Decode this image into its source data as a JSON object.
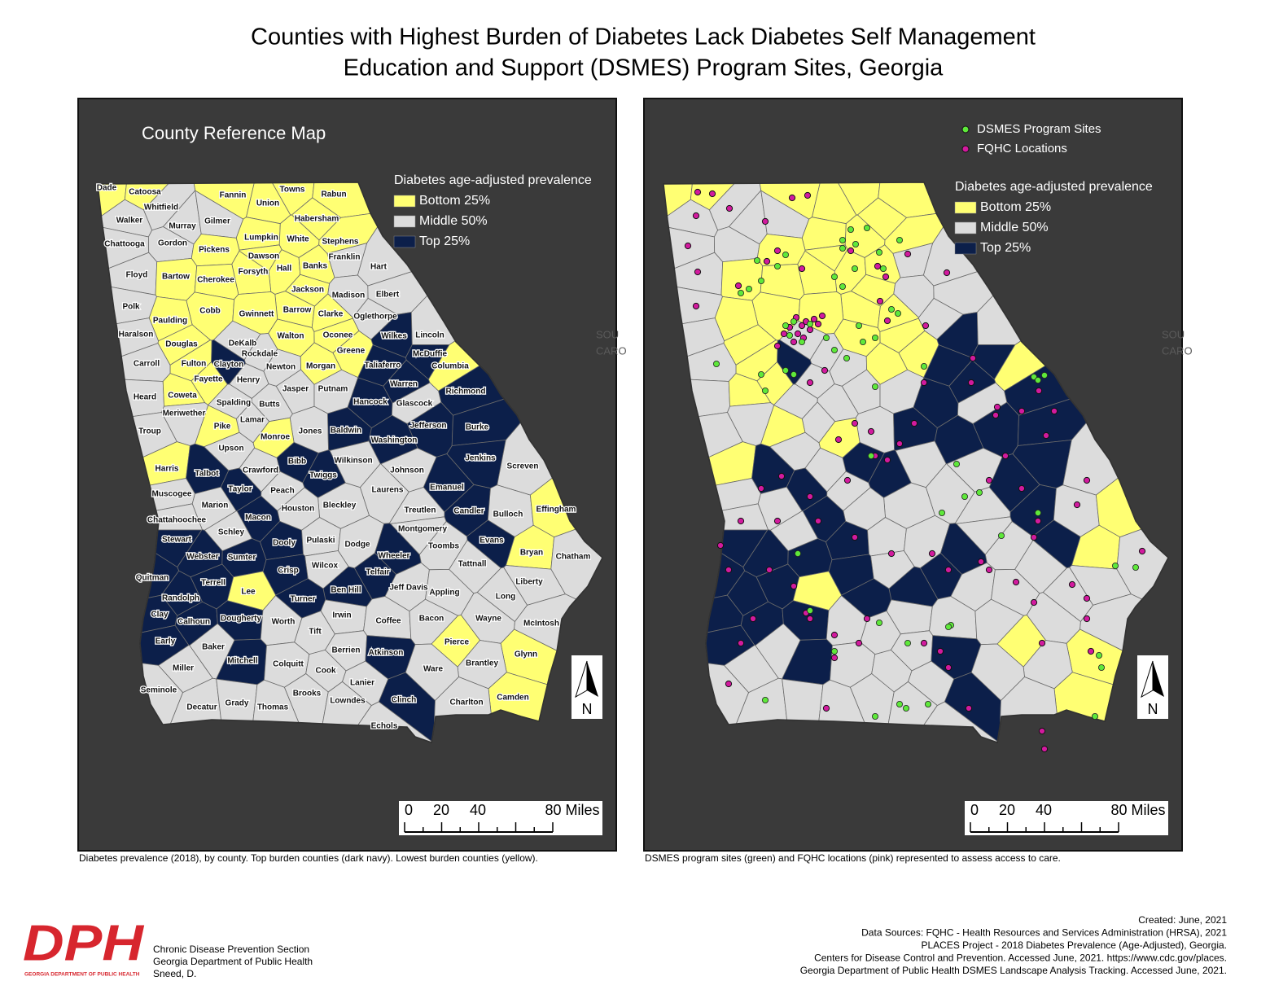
{
  "title": [
    "Counties with Highest Burden of Diabetes Lack Diabetes Self Management",
    "Education and Support (DSMES) Program Sites, Georgia"
  ],
  "left_map": {
    "title": "County Reference Map",
    "legend": {
      "title": "Diabetes age-adjusted prevalence",
      "items": [
        {
          "label": "Bottom 25%",
          "color": "#ffff73"
        },
        {
          "label": "Middle 50%",
          "color": "#dcdcdc"
        },
        {
          "label": "Top 25%",
          "color": "#0c1f4a"
        }
      ]
    },
    "basemap_labels": [
      "SOU",
      "CARO"
    ],
    "scale_bar": [
      "0",
      "20",
      "40",
      "80 Miles"
    ],
    "north": "N",
    "caption": "Diabetes prevalence (2018), by county. Top burden counties (dark navy). Lowest burden counties (yellow).",
    "counties": [
      {
        "name": "Dade",
        "group": "Bottom 25%"
      },
      {
        "name": "Catoosa",
        "group": "Bottom 25%"
      },
      {
        "name": "Towns",
        "group": "Bottom 25%"
      },
      {
        "name": "Rabun",
        "group": "Bottom 25%"
      },
      {
        "name": "Fannin",
        "group": "Bottom 25%"
      },
      {
        "name": "Union",
        "group": "Bottom 25%"
      },
      {
        "name": "Whitfield",
        "group": "Middle 50%"
      },
      {
        "name": "Walker",
        "group": "Middle 50%"
      },
      {
        "name": "Murray",
        "group": "Middle 50%"
      },
      {
        "name": "Gilmer",
        "group": "Middle 50%"
      },
      {
        "name": "Habersham",
        "group": "Bottom 25%"
      },
      {
        "name": "Lumpkin",
        "group": "Bottom 25%"
      },
      {
        "name": "White",
        "group": "Bottom 25%"
      },
      {
        "name": "Stephens",
        "group": "Bottom 25%"
      },
      {
        "name": "Chattooga",
        "group": "Middle 50%"
      },
      {
        "name": "Gordon",
        "group": "Middle 50%"
      },
      {
        "name": "Pickens",
        "group": "Bottom 25%"
      },
      {
        "name": "Dawson",
        "group": "Bottom 25%"
      },
      {
        "name": "Franklin",
        "group": "Middle 50%"
      },
      {
        "name": "Hall",
        "group": "Bottom 25%"
      },
      {
        "name": "Banks",
        "group": "Bottom 25%"
      },
      {
        "name": "Hart",
        "group": "Middle 50%"
      },
      {
        "name": "Forsyth",
        "group": "Bottom 25%"
      },
      {
        "name": "Floyd",
        "group": "Middle 50%"
      },
      {
        "name": "Bartow",
        "group": "Bottom 25%"
      },
      {
        "name": "Cherokee",
        "group": "Bottom 25%"
      },
      {
        "name": "Jackson",
        "group": "Bottom 25%"
      },
      {
        "name": "Madison",
        "group": "Middle 50%"
      },
      {
        "name": "Elbert",
        "group": "Middle 50%"
      },
      {
        "name": "Polk",
        "group": "Middle 50%"
      },
      {
        "name": "Cobb",
        "group": "Bottom 25%"
      },
      {
        "name": "Barrow",
        "group": "Bottom 25%"
      },
      {
        "name": "Clarke",
        "group": "Bottom 25%"
      },
      {
        "name": "Oglethorpe",
        "group": "Middle 50%"
      },
      {
        "name": "Gwinnett",
        "group": "Bottom 25%"
      },
      {
        "name": "Paulding",
        "group": "Bottom 25%"
      },
      {
        "name": "Haralson",
        "group": "Middle 50%"
      },
      {
        "name": "Walton",
        "group": "Bottom 25%"
      },
      {
        "name": "Oconee",
        "group": "Bottom 25%"
      },
      {
        "name": "Wilkes",
        "group": "Top 25%"
      },
      {
        "name": "Lincoln",
        "group": "Middle 50%"
      },
      {
        "name": "DeKalb",
        "group": "Middle 50%"
      },
      {
        "name": "Douglas",
        "group": "Bottom 25%"
      },
      {
        "name": "Greene",
        "group": "Bottom 25%"
      },
      {
        "name": "Rockdale",
        "group": "Middle 50%"
      },
      {
        "name": "McDuffie",
        "group": "Top 25%"
      },
      {
        "name": "Fulton",
        "group": "Bottom 25%"
      },
      {
        "name": "Clayton",
        "group": "Top 25%"
      },
      {
        "name": "Newton",
        "group": "Middle 50%"
      },
      {
        "name": "Morgan",
        "group": "Bottom 25%"
      },
      {
        "name": "Taliaferro",
        "group": "Top 25%"
      },
      {
        "name": "Columbia",
        "group": "Bottom 25%"
      },
      {
        "name": "Carroll",
        "group": "Middle 50%"
      },
      {
        "name": "Fayette",
        "group": "Bottom 25%"
      },
      {
        "name": "Henry",
        "group": "Middle 50%"
      },
      {
        "name": "Warren",
        "group": "Top 25%"
      },
      {
        "name": "Jasper",
        "group": "Middle 50%"
      },
      {
        "name": "Putnam",
        "group": "Middle 50%"
      },
      {
        "name": "Richmond",
        "group": "Top 25%"
      },
      {
        "name": "Heard",
        "group": "Middle 50%"
      },
      {
        "name": "Coweta",
        "group": "Bottom 25%"
      },
      {
        "name": "Spalding",
        "group": "Middle 50%"
      },
      {
        "name": "Butts",
        "group": "Middle 50%"
      },
      {
        "name": "Hancock",
        "group": "Top 25%"
      },
      {
        "name": "Glascock",
        "group": "Middle 50%"
      },
      {
        "name": "Meriwether",
        "group": "Middle 50%"
      },
      {
        "name": "Lamar",
        "group": "Middle 50%"
      },
      {
        "name": "Jefferson",
        "group": "Top 25%"
      },
      {
        "name": "Burke",
        "group": "Top 25%"
      },
      {
        "name": "Troup",
        "group": "Middle 50%"
      },
      {
        "name": "Pike",
        "group": "Bottom 25%"
      },
      {
        "name": "Jones",
        "group": "Middle 50%"
      },
      {
        "name": "Baldwin",
        "group": "Top 25%"
      },
      {
        "name": "Washington",
        "group": "Top 25%"
      },
      {
        "name": "Monroe",
        "group": "Bottom 25%"
      },
      {
        "name": "Upson",
        "group": "Middle 50%"
      },
      {
        "name": "Jenkins",
        "group": "Top 25%"
      },
      {
        "name": "Wilkinson",
        "group": "Middle 50%"
      },
      {
        "name": "Bibb",
        "group": "Top 25%"
      },
      {
        "name": "Harris",
        "group": "Bottom 25%"
      },
      {
        "name": "Talbot",
        "group": "Top 25%"
      },
      {
        "name": "Crawford",
        "group": "Middle 50%"
      },
      {
        "name": "Johnson",
        "group": "Middle 50%"
      },
      {
        "name": "Screven",
        "group": "Middle 50%"
      },
      {
        "name": "Twiggs",
        "group": "Top 25%"
      },
      {
        "name": "Muscogee",
        "group": "Middle 50%"
      },
      {
        "name": "Taylor",
        "group": "Top 25%"
      },
      {
        "name": "Peach",
        "group": "Middle 50%"
      },
      {
        "name": "Laurens",
        "group": "Middle 50%"
      },
      {
        "name": "Emanuel",
        "group": "Top 25%"
      },
      {
        "name": "Bleckley",
        "group": "Middle 50%"
      },
      {
        "name": "Marion",
        "group": "Middle 50%"
      },
      {
        "name": "Houston",
        "group": "Middle 50%"
      },
      {
        "name": "Treutlen",
        "group": "Middle 50%"
      },
      {
        "name": "Candler",
        "group": "Top 25%"
      },
      {
        "name": "Bulloch",
        "group": "Middle 50%"
      },
      {
        "name": "Effingham",
        "group": "Bottom 25%"
      },
      {
        "name": "Chattahoochee",
        "group": "Middle 50%"
      },
      {
        "name": "Macon",
        "group": "Top 25%"
      },
      {
        "name": "Montgomery",
        "group": "Middle 50%"
      },
      {
        "name": "Schley",
        "group": "Middle 50%"
      },
      {
        "name": "Stewart",
        "group": "Top 25%"
      },
      {
        "name": "Dooly",
        "group": "Top 25%"
      },
      {
        "name": "Pulaski",
        "group": "Middle 50%"
      },
      {
        "name": "Dodge",
        "group": "Middle 50%"
      },
      {
        "name": "Toombs",
        "group": "Middle 50%"
      },
      {
        "name": "Evans",
        "group": "Top 25%"
      },
      {
        "name": "Bryan",
        "group": "Bottom 25%"
      },
      {
        "name": "Chatham",
        "group": "Middle 50%"
      },
      {
        "name": "Webster",
        "group": "Top 25%"
      },
      {
        "name": "Sumter",
        "group": "Top 25%"
      },
      {
        "name": "Wheeler",
        "group": "Top 25%"
      },
      {
        "name": "Tattnall",
        "group": "Middle 50%"
      },
      {
        "name": "Wilcox",
        "group": "Middle 50%"
      },
      {
        "name": "Crisp",
        "group": "Top 25%"
      },
      {
        "name": "Telfair",
        "group": "Top 25%"
      },
      {
        "name": "Quitman",
        "group": "Top 25%"
      },
      {
        "name": "Terrell",
        "group": "Top 25%"
      },
      {
        "name": "Lee",
        "group": "Bottom 25%"
      },
      {
        "name": "Ben Hill",
        "group": "Top 25%"
      },
      {
        "name": "Jeff Davis",
        "group": "Middle 50%"
      },
      {
        "name": "Appling",
        "group": "Middle 50%"
      },
      {
        "name": "Liberty",
        "group": "Middle 50%"
      },
      {
        "name": "Randolph",
        "group": "Top 25%"
      },
      {
        "name": "Turner",
        "group": "Top 25%"
      },
      {
        "name": "Long",
        "group": "Middle 50%"
      },
      {
        "name": "Clay",
        "group": "Top 25%"
      },
      {
        "name": "Calhoun",
        "group": "Top 25%"
      },
      {
        "name": "Dougherty",
        "group": "Top 25%"
      },
      {
        "name": "Worth",
        "group": "Middle 50%"
      },
      {
        "name": "Irwin",
        "group": "Middle 50%"
      },
      {
        "name": "Coffee",
        "group": "Middle 50%"
      },
      {
        "name": "Bacon",
        "group": "Middle 50%"
      },
      {
        "name": "Wayne",
        "group": "Middle 50%"
      },
      {
        "name": "McIntosh",
        "group": "Middle 50%"
      },
      {
        "name": "Tift",
        "group": "Middle 50%"
      },
      {
        "name": "Early",
        "group": "Top 25%"
      },
      {
        "name": "Baker",
        "group": "Middle 50%"
      },
      {
        "name": "Pierce",
        "group": "Bottom 25%"
      },
      {
        "name": "Berrien",
        "group": "Middle 50%"
      },
      {
        "name": "Atkinson",
        "group": "Top 25%"
      },
      {
        "name": "Glynn",
        "group": "Bottom 25%"
      },
      {
        "name": "Mitchell",
        "group": "Top 25%"
      },
      {
        "name": "Colquitt",
        "group": "Middle 50%"
      },
      {
        "name": "Brantley",
        "group": "Middle 50%"
      },
      {
        "name": "Miller",
        "group": "Middle 50%"
      },
      {
        "name": "Cook",
        "group": "Middle 50%"
      },
      {
        "name": "Ware",
        "group": "Middle 50%"
      },
      {
        "name": "Lanier",
        "group": "Middle 50%"
      },
      {
        "name": "Seminole",
        "group": "Middle 50%"
      },
      {
        "name": "Brooks",
        "group": "Middle 50%"
      },
      {
        "name": "Clinch",
        "group": "Top 25%"
      },
      {
        "name": "Camden",
        "group": "Bottom 25%"
      },
      {
        "name": "Lowndes",
        "group": "Middle 50%"
      },
      {
        "name": "Charlton",
        "group": "Middle 50%"
      },
      {
        "name": "Decatur",
        "group": "Middle 50%"
      },
      {
        "name": "Grady",
        "group": "Middle 50%"
      },
      {
        "name": "Thomas",
        "group": "Middle 50%"
      },
      {
        "name": "Echols",
        "group": "Middle 50%"
      }
    ]
  },
  "right_map": {
    "point_legend": [
      {
        "label": "DSMES Program Sites",
        "color": "#5ee83a"
      },
      {
        "label": "FQHC Locations",
        "color": "#d21a9e"
      }
    ],
    "legend": {
      "title": "Diabetes age-adjusted prevalence",
      "items": [
        {
          "label": "Bottom 25%",
          "color": "#ffff73"
        },
        {
          "label": "Middle 50%",
          "color": "#dcdcdc"
        },
        {
          "label": "Top 25%",
          "color": "#0c1f4a"
        }
      ]
    },
    "basemap_labels": [
      "SOU",
      "CARO"
    ],
    "scale_bar": [
      "0",
      "20",
      "40",
      "80 Miles"
    ],
    "north": "N",
    "caption": "DSMES program sites (green) and FQHC locations (pink) represented to assess access to care."
  },
  "footer": {
    "logo": {
      "text": "DPH",
      "subtitle": "GEORGIA DEPARTMENT OF PUBLIC HEALTH"
    },
    "org": [
      "Chronic Disease Prevention Section",
      "Georgia Department of Public Health",
      "Sneed, D."
    ],
    "sources": [
      "Created: June, 2021",
      "Data Sources: FQHC - Health Resources and Services Administration (HRSA), 2021",
      "PLACES Project - 2018 Diabetes Prevalence (Age-Adjusted), Georgia.",
      "Centers for Disease Control and Prevention. Accessed June, 2021. https://www.cdc.gov/places.",
      "Georgia Department of Public Health DSMES Landscape Analysis Tracking. Accessed June, 2021."
    ]
  }
}
